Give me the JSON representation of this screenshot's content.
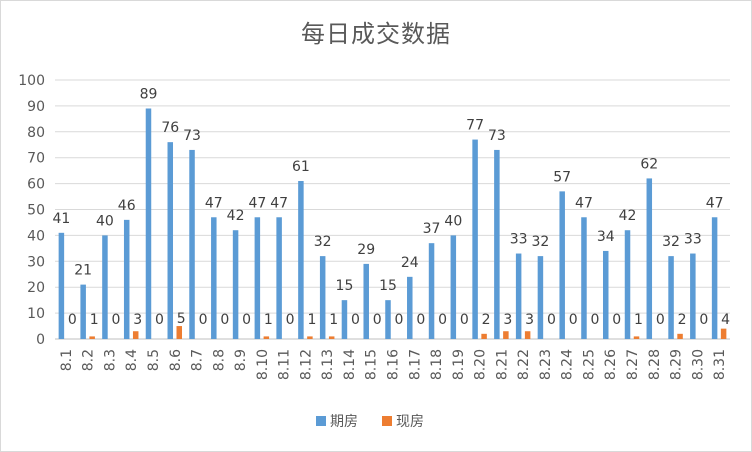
{
  "chart_data": {
    "type": "bar",
    "title": "每日成交数据",
    "categories": [
      "8.1",
      "8.2",
      "8.3",
      "8.4",
      "8.5",
      "8.6",
      "8.7",
      "8.8",
      "8.9",
      "8.10",
      "8.11",
      "8.12",
      "8.13",
      "8.14",
      "8.15",
      "8.16",
      "8.17",
      "8.18",
      "8.19",
      "8.20",
      "8.21",
      "8.22",
      "8.23",
      "8.24",
      "8.25",
      "8.26",
      "8.27",
      "8.28",
      "8.29",
      "8.30",
      "8.31"
    ],
    "series": [
      {
        "name": "期房",
        "color": "#5b9bd5",
        "values": [
          41,
          21,
          40,
          46,
          89,
          76,
          73,
          47,
          42,
          47,
          47,
          61,
          32,
          15,
          29,
          15,
          24,
          37,
          40,
          77,
          73,
          33,
          32,
          57,
          47,
          34,
          42,
          62,
          32,
          33,
          47
        ]
      },
      {
        "name": "现房",
        "color": "#ed7d31",
        "values": [
          0,
          1,
          0,
          3,
          0,
          5,
          0,
          0,
          0,
          1,
          0,
          1,
          1,
          0,
          0,
          0,
          0,
          0,
          0,
          2,
          3,
          3,
          0,
          0,
          0,
          0,
          1,
          0,
          2,
          0,
          4
        ]
      }
    ],
    "ylim": [
      0,
      100
    ],
    "yticks": [
      0,
      10,
      20,
      30,
      40,
      50,
      60,
      70,
      80,
      90,
      100
    ],
    "grid": true,
    "legend": "bottom",
    "data_labels": true
  }
}
